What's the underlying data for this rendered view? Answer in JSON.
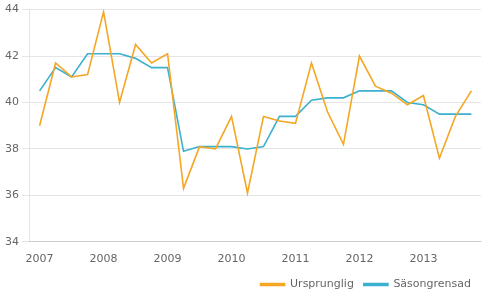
{
  "chart_data": {
    "type": "line",
    "x": [
      2007.0,
      2007.25,
      2007.5,
      2007.75,
      2008.0,
      2008.25,
      2008.5,
      2008.75,
      2009.0,
      2009.25,
      2009.5,
      2009.75,
      2010.0,
      2010.25,
      2010.5,
      2010.75,
      2011.0,
      2011.25,
      2011.5,
      2011.75,
      2012.0,
      2012.25,
      2012.5,
      2012.75,
      2013.0,
      2013.25,
      2013.5,
      2013.75
    ],
    "series": [
      {
        "name": "Ursprunglig",
        "color": "#f5a623",
        "values": [
          39.0,
          41.7,
          41.1,
          41.2,
          43.9,
          40.0,
          42.5,
          41.7,
          42.1,
          36.3,
          38.1,
          38.0,
          39.4,
          36.1,
          39.4,
          39.2,
          39.1,
          41.7,
          39.6,
          38.2,
          42.0,
          40.7,
          40.4,
          39.9,
          40.3,
          37.6,
          39.4,
          40.5
        ]
      },
      {
        "name": "Säsongrensad",
        "color": "#3bb0d0",
        "values": [
          40.5,
          41.5,
          41.1,
          42.1,
          42.1,
          42.1,
          41.9,
          41.5,
          41.5,
          37.9,
          38.1,
          38.1,
          38.1,
          38.0,
          38.1,
          39.4,
          39.4,
          40.1,
          40.2,
          40.2,
          40.5,
          40.5,
          40.5,
          40.0,
          39.9,
          39.5,
          39.5,
          39.5
        ]
      }
    ],
    "xlim": [
      2006.85,
      2013.9
    ],
    "xticks": [
      2007,
      2008,
      2009,
      2010,
      2011,
      2012,
      2013
    ],
    "ylim": [
      34,
      44
    ],
    "yticks": [
      34,
      36,
      38,
      40,
      42,
      44
    ],
    "grid": "y",
    "legend": "lower right"
  }
}
